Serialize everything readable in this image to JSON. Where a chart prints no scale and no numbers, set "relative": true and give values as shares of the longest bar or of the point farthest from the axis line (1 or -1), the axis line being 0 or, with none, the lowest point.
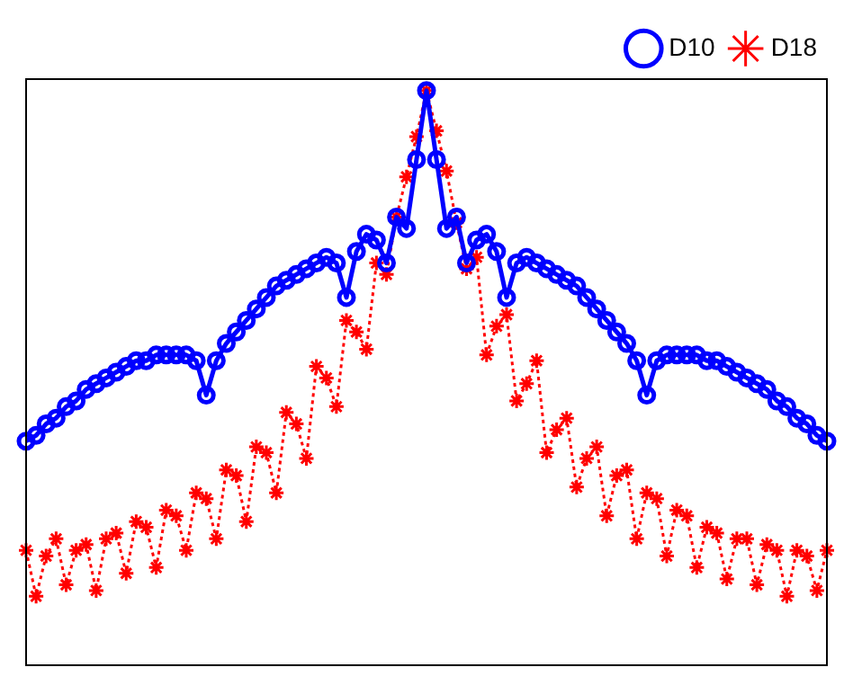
{
  "chart_data": {
    "type": "line",
    "relative": true,
    "tick_labels": false,
    "grid": false,
    "legend": "top right",
    "categories": [
      null,
      null,
      null,
      null,
      null,
      null,
      null,
      null,
      null,
      null,
      null,
      null,
      null,
      null,
      null,
      null,
      null,
      null,
      null,
      null,
      null,
      null,
      null,
      null,
      null,
      null,
      null,
      null,
      null,
      null,
      null,
      null,
      null,
      null,
      null,
      null,
      null,
      null,
      null,
      null,
      null,
      null,
      null,
      null,
      null,
      null,
      null,
      null,
      null,
      null,
      null,
      null,
      null,
      null,
      null,
      null,
      null,
      null,
      null,
      null,
      null,
      null,
      null,
      null,
      null,
      null,
      null,
      null,
      null,
      null,
      null,
      null,
      null,
      null,
      null,
      null,
      null,
      null,
      null,
      null,
      null
    ],
    "series": [
      {
        "name": "D10",
        "color": "#0000ff",
        "marker": "circle",
        "line_style": "solid",
        "values": [
          0.39,
          0.4,
          0.42,
          0.43,
          0.45,
          0.46,
          0.48,
          0.49,
          0.5,
          0.51,
          0.52,
          0.53,
          0.53,
          0.54,
          0.54,
          0.54,
          0.54,
          0.53,
          0.47,
          0.53,
          0.56,
          0.58,
          0.6,
          0.62,
          0.64,
          0.66,
          0.67,
          0.68,
          0.69,
          0.7,
          0.71,
          0.7,
          0.64,
          0.72,
          0.75,
          0.74,
          0.7,
          0.78,
          0.76,
          0.88,
          1.0,
          0.88,
          0.76,
          0.78,
          0.7,
          0.74,
          0.75,
          0.72,
          0.64,
          0.7,
          0.71,
          0.7,
          0.69,
          0.68,
          0.67,
          0.66,
          0.64,
          0.62,
          0.6,
          0.58,
          0.56,
          0.53,
          0.47,
          0.53,
          0.54,
          0.54,
          0.54,
          0.54,
          0.53,
          0.53,
          0.52,
          0.51,
          0.5,
          0.49,
          0.48,
          0.46,
          0.45,
          0.43,
          0.42,
          0.4,
          0.39
        ]
      },
      {
        "name": "D18",
        "color": "#ff0000",
        "marker": "cross",
        "line_style": "dotted",
        "values": [
          0.2,
          0.12,
          0.19,
          0.22,
          0.14,
          0.2,
          0.21,
          0.13,
          0.22,
          0.23,
          0.16,
          0.25,
          0.24,
          0.17,
          0.27,
          0.26,
          0.2,
          0.3,
          0.29,
          0.22,
          0.34,
          0.33,
          0.25,
          0.38,
          0.37,
          0.3,
          0.44,
          0.42,
          0.36,
          0.52,
          0.5,
          0.45,
          0.6,
          0.58,
          0.55,
          0.7,
          0.68,
          0.78,
          0.85,
          0.92,
          1.0,
          0.93,
          0.86,
          0.77,
          0.69,
          0.71,
          0.54,
          0.59,
          0.61,
          0.46,
          0.49,
          0.53,
          0.37,
          0.41,
          0.43,
          0.31,
          0.36,
          0.38,
          0.26,
          0.33,
          0.34,
          0.22,
          0.3,
          0.29,
          0.19,
          0.27,
          0.26,
          0.17,
          0.24,
          0.23,
          0.15,
          0.22,
          0.22,
          0.14,
          0.21,
          0.2,
          0.12,
          0.2,
          0.19,
          0.13,
          0.2
        ]
      }
    ]
  }
}
